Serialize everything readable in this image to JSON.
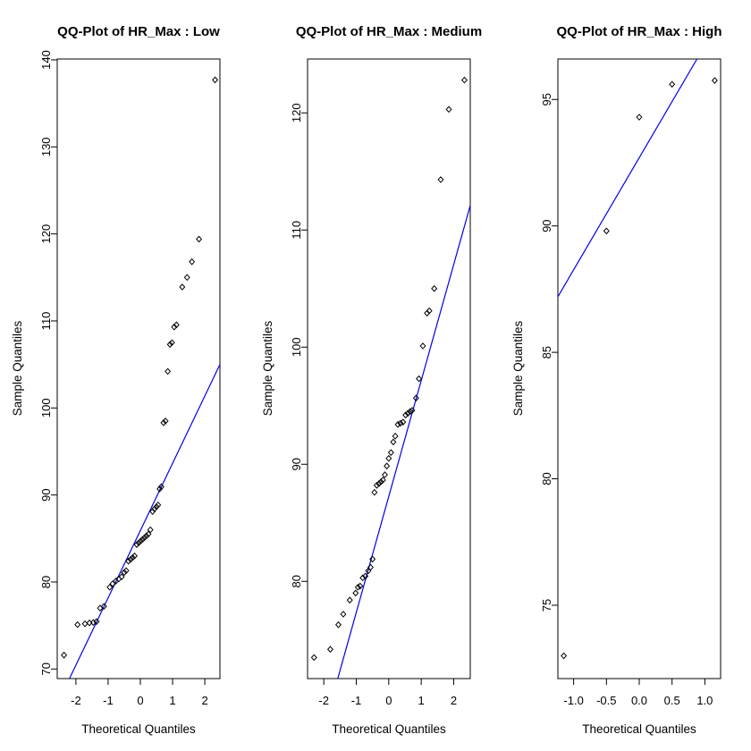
{
  "page": {
    "background": "#ffffff"
  },
  "chart_data": [
    {
      "type": "scatter",
      "title": "QQ-Plot of HR_Max : Low",
      "xlabel": "Theoretical Quantiles",
      "ylabel": "Sample Quantiles",
      "xlim": [
        -2.58,
        2.47
      ],
      "ylim": [
        68.9,
        140.1
      ],
      "x_ticks": [
        -2,
        -1,
        0,
        1,
        2
      ],
      "x_tick_labels": [
        "-2",
        "-1",
        "0",
        "1",
        "2"
      ],
      "y_ticks": [
        70,
        80,
        90,
        100,
        110,
        120,
        130,
        140
      ],
      "y_tick_labels": [
        "70",
        "80",
        "90",
        "100",
        "110",
        "120",
        "130",
        "140"
      ],
      "grid": false,
      "marker": "open-diamond",
      "marker_color": "#000000",
      "line": {
        "x1": -2.2,
        "y1": 68.9,
        "x2": 2.47,
        "y2": 105.0,
        "color": "#0000EE"
      },
      "points": [
        [
          -2.37,
          71.6
        ],
        [
          -1.95,
          75.1
        ],
        [
          -1.72,
          75.2
        ],
        [
          -1.58,
          75.3
        ],
        [
          -1.46,
          75.35
        ],
        [
          -1.36,
          75.45
        ],
        [
          -1.25,
          77.0
        ],
        [
          -1.13,
          77.2
        ],
        [
          -0.95,
          79.4
        ],
        [
          -0.86,
          79.8
        ],
        [
          -0.76,
          80.1
        ],
        [
          -0.67,
          80.35
        ],
        [
          -0.58,
          80.6
        ],
        [
          -0.5,
          81.1
        ],
        [
          -0.44,
          81.3
        ],
        [
          -0.37,
          82.4
        ],
        [
          -0.3,
          82.6
        ],
        [
          -0.24,
          82.8
        ],
        [
          -0.18,
          83.0
        ],
        [
          -0.11,
          84.3
        ],
        [
          -0.05,
          84.5
        ],
        [
          0.01,
          84.7
        ],
        [
          0.07,
          84.9
        ],
        [
          0.13,
          85.1
        ],
        [
          0.19,
          85.3
        ],
        [
          0.25,
          85.5
        ],
        [
          0.31,
          86.0
        ],
        [
          0.38,
          88.1
        ],
        [
          0.44,
          88.4
        ],
        [
          0.5,
          88.65
        ],
        [
          0.55,
          88.85
        ],
        [
          0.6,
          90.7
        ],
        [
          0.65,
          90.95
        ],
        [
          0.72,
          98.3
        ],
        [
          0.78,
          98.5
        ],
        [
          0.85,
          104.2
        ],
        [
          0.92,
          107.3
        ],
        [
          0.98,
          107.5
        ],
        [
          1.05,
          109.3
        ],
        [
          1.12,
          109.55
        ],
        [
          1.3,
          113.9
        ],
        [
          1.45,
          115.0
        ],
        [
          1.6,
          116.8
        ],
        [
          1.82,
          119.4
        ],
        [
          2.32,
          137.7
        ]
      ]
    },
    {
      "type": "scatter",
      "title": "QQ-Plot of HR_Max : Medium",
      "xlabel": "Theoretical Quantiles",
      "ylabel": "Sample Quantiles",
      "xlim": [
        -2.5,
        2.51
      ],
      "ylim": [
        71.7,
        124.6
      ],
      "x_ticks": [
        -2,
        -1,
        0,
        1,
        2
      ],
      "x_tick_labels": [
        "-2",
        "-1",
        "0",
        "1",
        "2"
      ],
      "y_ticks": [
        80,
        90,
        100,
        110,
        120
      ],
      "y_tick_labels": [
        "80",
        "90",
        "100",
        "110",
        "120"
      ],
      "grid": false,
      "marker": "open-diamond",
      "marker_color": "#000000",
      "line": {
        "x1": -1.57,
        "y1": 71.7,
        "x2": 2.51,
        "y2": 112.1,
        "color": "#0000EE"
      },
      "points": [
        [
          -2.3,
          73.5
        ],
        [
          -1.8,
          74.2
        ],
        [
          -1.55,
          76.3
        ],
        [
          -1.4,
          77.2
        ],
        [
          -1.2,
          78.4
        ],
        [
          -1.02,
          79.0
        ],
        [
          -0.95,
          79.5
        ],
        [
          -0.88,
          79.6
        ],
        [
          -0.8,
          80.3
        ],
        [
          -0.72,
          80.45
        ],
        [
          -0.63,
          80.9
        ],
        [
          -0.56,
          81.2
        ],
        [
          -0.5,
          81.9
        ],
        [
          -0.44,
          87.6
        ],
        [
          -0.37,
          88.2
        ],
        [
          -0.3,
          88.35
        ],
        [
          -0.24,
          88.5
        ],
        [
          -0.18,
          88.65
        ],
        [
          -0.12,
          89.1
        ],
        [
          -0.06,
          89.85
        ],
        [
          0.0,
          90.5
        ],
        [
          0.07,
          91.0
        ],
        [
          0.14,
          91.9
        ],
        [
          0.2,
          92.4
        ],
        [
          0.28,
          93.4
        ],
        [
          0.36,
          93.5
        ],
        [
          0.44,
          93.6
        ],
        [
          0.52,
          94.2
        ],
        [
          0.59,
          94.35
        ],
        [
          0.66,
          94.5
        ],
        [
          0.72,
          94.6
        ],
        [
          0.84,
          95.65
        ],
        [
          0.93,
          97.3
        ],
        [
          1.05,
          100.1
        ],
        [
          1.18,
          102.9
        ],
        [
          1.25,
          103.1
        ],
        [
          1.4,
          105.0
        ],
        [
          1.6,
          114.3
        ],
        [
          1.85,
          120.3
        ],
        [
          2.33,
          122.8
        ]
      ]
    },
    {
      "type": "scatter",
      "title": "QQ-Plot of HR_Max : High",
      "xlabel": "Theoretical Quantiles",
      "ylabel": "Sample Quantiles",
      "xlim": [
        -1.24,
        1.24
      ],
      "ylim": [
        72.1,
        96.6
      ],
      "x_ticks": [
        -1.0,
        -0.5,
        0.0,
        0.5,
        1.0
      ],
      "x_tick_labels": [
        "-1.0",
        "-0.5",
        "0.0",
        "0.5",
        "1.0"
      ],
      "y_ticks": [
        75,
        80,
        85,
        90,
        95
      ],
      "y_tick_labels": [
        "75",
        "80",
        "85",
        "90",
        "95"
      ],
      "grid": false,
      "marker": "open-diamond",
      "marker_color": "#000000",
      "line": {
        "x1": -1.24,
        "y1": 87.2,
        "x2": 0.88,
        "y2": 96.6,
        "color": "#0000EE"
      },
      "points": [
        [
          -1.15,
          73.0
        ],
        [
          -0.5,
          89.8
        ],
        [
          0.0,
          94.3
        ],
        [
          0.5,
          95.6
        ],
        [
          1.15,
          95.75
        ]
      ]
    }
  ]
}
